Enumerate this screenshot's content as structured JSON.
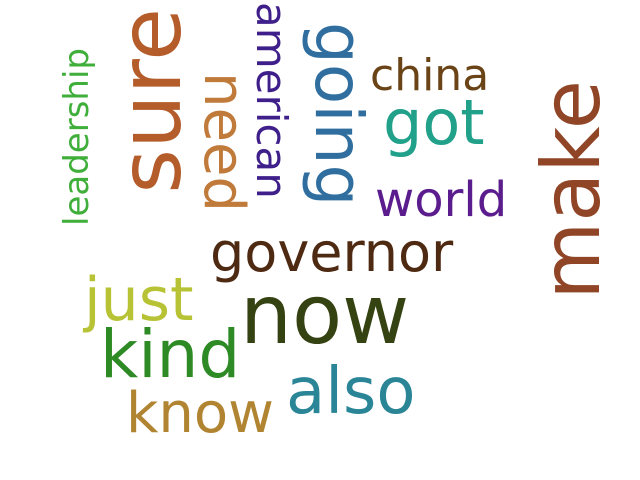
{
  "words": [
    {
      "text": "leadership",
      "color": "#3fae3a"
    },
    {
      "text": "sure",
      "color": "#b45c2a"
    },
    {
      "text": "need",
      "color": "#c07a3a"
    },
    {
      "text": "american",
      "color": "#3f1f8a"
    },
    {
      "text": "going",
      "color": "#2f6e9e"
    },
    {
      "text": "china",
      "color": "#6a4316"
    },
    {
      "text": "got",
      "color": "#21a08a"
    },
    {
      "text": "make",
      "color": "#8f4526"
    },
    {
      "text": "world",
      "color": "#5b1d8d"
    },
    {
      "text": "governor",
      "color": "#4f2a12"
    },
    {
      "text": "just",
      "color": "#b7c235"
    },
    {
      "text": "now",
      "color": "#354212"
    },
    {
      "text": "kind",
      "color": "#2d8a25"
    },
    {
      "text": "also",
      "color": "#2a8596"
    },
    {
      "text": "know",
      "color": "#b08430"
    }
  ]
}
